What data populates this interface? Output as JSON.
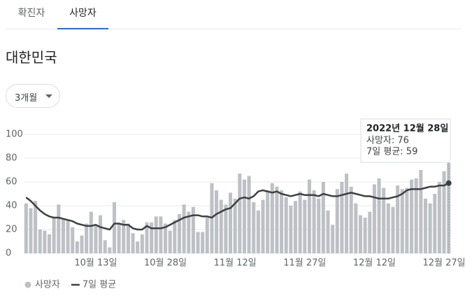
{
  "tabs": [
    "확진자",
    "사망자"
  ],
  "active_tab": 1,
  "region": "대한민국",
  "range_selector": "3개월",
  "chart_data": {
    "type": "bar",
    "categories": [
      null,
      null,
      null,
      null,
      null,
      null,
      null,
      null,
      null,
      null,
      null,
      null,
      null,
      null,
      null,
      "10월 13일",
      null,
      null,
      null,
      null,
      null,
      null,
      null,
      null,
      null,
      null,
      null,
      null,
      null,
      null,
      "10월 28일",
      null,
      null,
      null,
      null,
      null,
      null,
      null,
      null,
      null,
      null,
      null,
      null,
      null,
      null,
      "11월 12일",
      null,
      null,
      null,
      null,
      null,
      null,
      null,
      null,
      null,
      null,
      null,
      null,
      null,
      null,
      "11월 27일",
      null,
      null,
      null,
      null,
      null,
      null,
      null,
      null,
      null,
      null,
      null,
      null,
      null,
      null,
      "12월 12일",
      null,
      null,
      null,
      null,
      null,
      null,
      null,
      null,
      null,
      null,
      null,
      null,
      null,
      null,
      "12월 27일",
      null
    ],
    "series": [
      {
        "name": "사망자",
        "type": "bar",
        "color": "#bdc1c6",
        "values": [
          42,
          38,
          44,
          20,
          19,
          16,
          30,
          41,
          29,
          28,
          22,
          10,
          15,
          25,
          35,
          24,
          32,
          11,
          5,
          43,
          25,
          28,
          25,
          17,
          10,
          16,
          26,
          26,
          31,
          31,
          25,
          19,
          28,
          33,
          41,
          35,
          39,
          18,
          18,
          30,
          59,
          53,
          45,
          41,
          51,
          46,
          67,
          62,
          65,
          43,
          36,
          45,
          53,
          59,
          56,
          53,
          47,
          40,
          44,
          52,
          45,
          62,
          53,
          46,
          60,
          36,
          24,
          54,
          60,
          67,
          56,
          42,
          32,
          30,
          35,
          58,
          63,
          55,
          42,
          39,
          57,
          54,
          55,
          62,
          63,
          70,
          46,
          42,
          50,
          60,
          69,
          76
        ]
      },
      {
        "name": "7일 평균",
        "type": "line",
        "color": "#3c4043",
        "values": [
          47,
          44,
          40,
          36,
          33,
          31,
          30,
          30,
          29,
          28,
          27,
          25,
          24,
          23,
          23,
          24,
          22,
          21,
          20,
          25,
          25,
          24,
          24,
          21,
          20,
          20,
          23,
          21,
          21,
          21,
          22,
          24,
          26,
          28,
          30,
          31,
          32,
          32,
          31,
          31,
          30,
          33,
          35,
          37,
          38,
          42,
          46,
          47,
          46,
          48,
          52,
          53,
          52,
          51,
          52,
          50,
          49,
          48,
          49,
          50,
          49,
          49,
          49,
          48,
          50,
          49,
          48,
          48,
          49,
          50,
          51,
          50,
          49,
          48,
          48,
          47,
          46,
          46,
          46,
          47,
          48,
          50,
          53,
          54,
          54,
          54,
          55,
          56,
          56,
          57,
          57,
          59
        ]
      }
    ],
    "ylim": [
      0,
      100
    ],
    "yticks": [
      0,
      20,
      40,
      60,
      80,
      100
    ],
    "grid": true,
    "legend": "bottom-left",
    "tooltip": {
      "index": 91,
      "date": "2022년 12월 28일",
      "lines": [
        "사망자: 76",
        "7일 평균: 59"
      ]
    }
  }
}
